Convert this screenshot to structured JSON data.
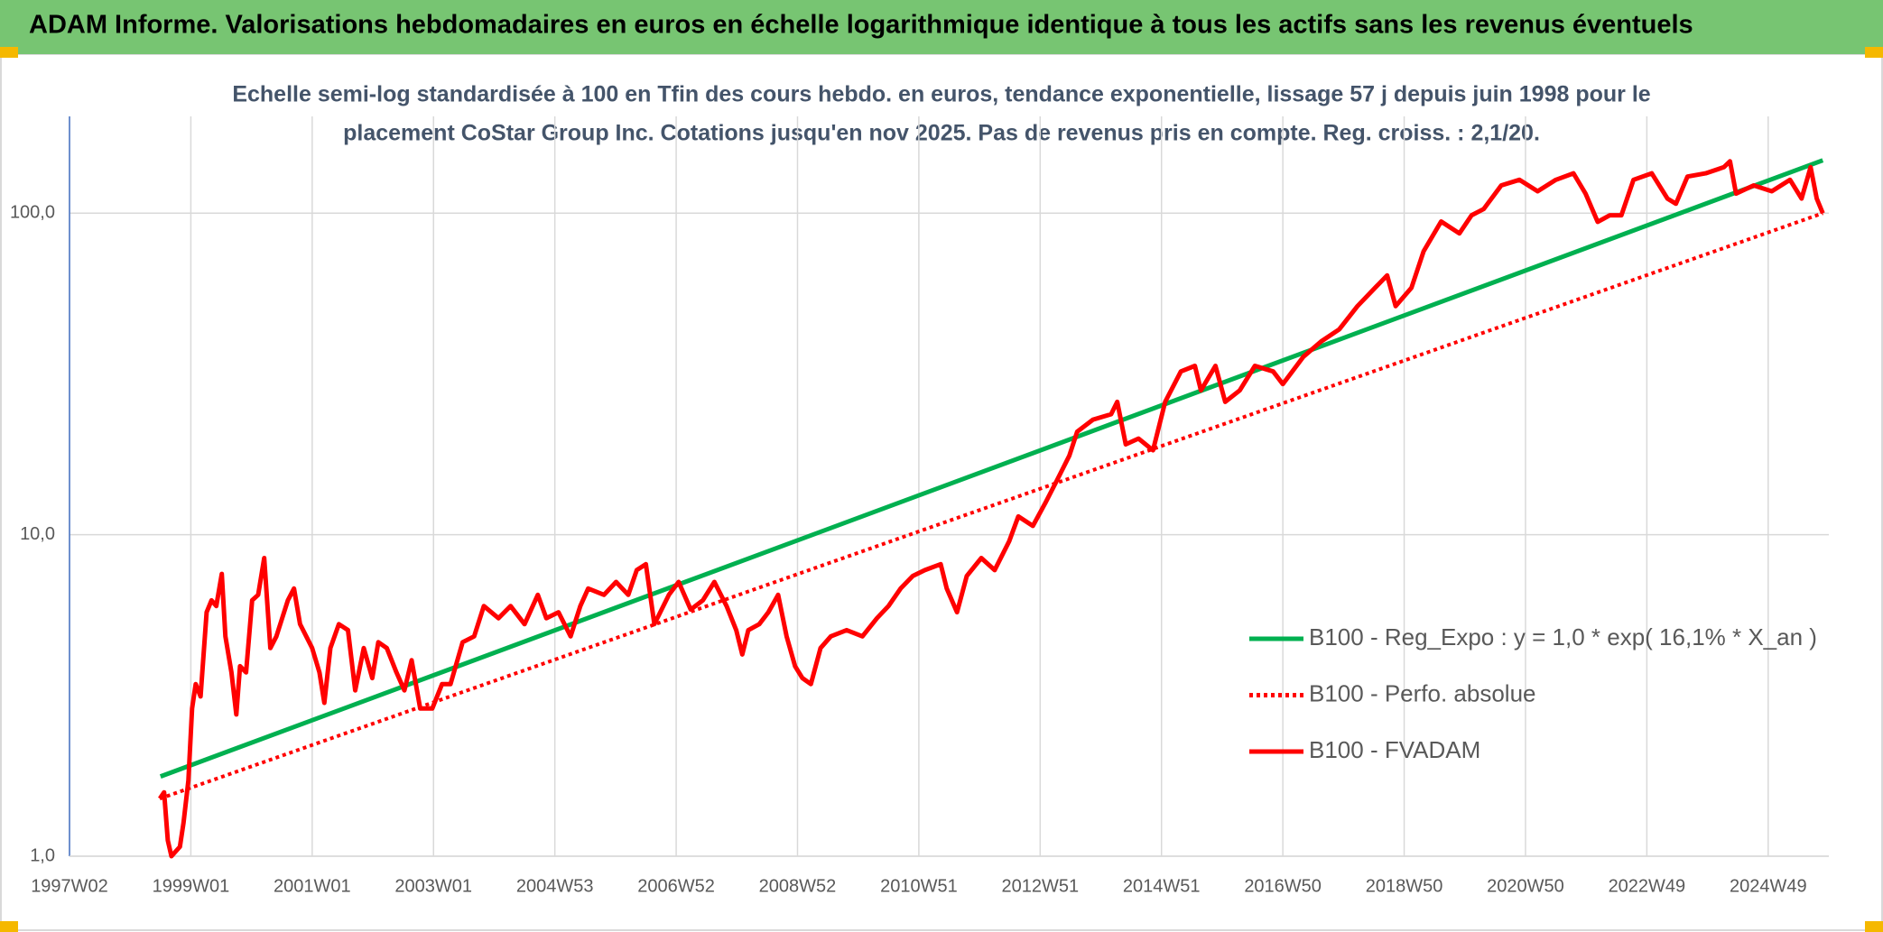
{
  "chart_data": {
    "type": "line",
    "title": "ADAM Informe. Valorisations hebdomadaires en euros en échelle logarithmique identique à tous les actifs sans les revenus éventuels",
    "subtitle": [
      "Echelle semi-log standardisée à 100 en Tfin des cours hebdo. en euros, tendance exponentielle, lissage 57 j depuis juin 1998 pour le",
      "placement CoStar Group Inc. Cotations jusqu'en nov 2025. Pas de revenus pris en compte. Reg. croiss. : 2,1/20."
    ],
    "log_scale": true,
    "grid": true,
    "legend": "right",
    "xlim": [
      1997,
      2026
    ],
    "xticks": [
      {
        "value": 1997,
        "label": "1997W02"
      },
      {
        "value": 1999,
        "label": "1999W01"
      },
      {
        "value": 2001,
        "label": "2001W01"
      },
      {
        "value": 2003,
        "label": "2003W01"
      },
      {
        "value": 2005,
        "label": "2004W53"
      },
      {
        "value": 2007,
        "label": "2006W52"
      },
      {
        "value": 2009,
        "label": "2008W52"
      },
      {
        "value": 2011,
        "label": "2010W51"
      },
      {
        "value": 2013,
        "label": "2012W51"
      },
      {
        "value": 2015,
        "label": "2014W51"
      },
      {
        "value": 2017,
        "label": "2016W50"
      },
      {
        "value": 2019,
        "label": "2018W50"
      },
      {
        "value": 2021,
        "label": "2020W50"
      },
      {
        "value": 2023,
        "label": "2022W49"
      },
      {
        "value": 2025,
        "label": "2024W49"
      }
    ],
    "ylim": [
      1,
      200
    ],
    "yticks": [
      {
        "value": 1,
        "label": "1,0"
      },
      {
        "value": 10,
        "label": "10,0"
      },
      {
        "value": 100,
        "label": "100,0"
      }
    ],
    "series": [
      {
        "name": "B100 - Reg_Expo : y = 1,0 * exp( 16,1% *  X_an )",
        "color": "#00b050",
        "style": "solid",
        "x": [
          1998.5,
          2025.9
        ],
        "values": [
          1.77,
          146
        ]
      },
      {
        "name": "B100 - Perfo. absolue",
        "color": "#ff0000",
        "style": "dotted",
        "x": [
          1998.49,
          2025.9
        ],
        "values": [
          1.51,
          100
        ]
      },
      {
        "name": "B100 - FVADAM",
        "color": "#ff0000",
        "style": "solid",
        "x": [
          1998.49,
          1998.56,
          1998.62,
          1998.68,
          1998.82,
          1998.88,
          1998.96,
          1999.02,
          1999.08,
          1999.16,
          1999.26,
          1999.34,
          1999.42,
          1999.51,
          1999.57,
          1999.67,
          1999.75,
          1999.81,
          1999.91,
          2000.01,
          2000.11,
          2000.21,
          2000.31,
          2000.41,
          2000.6,
          2000.7,
          2000.8,
          2001.0,
          2001.12,
          2001.2,
          2001.3,
          2001.44,
          2001.59,
          2001.71,
          2001.85,
          2001.99,
          2002.09,
          2002.23,
          2002.39,
          2002.52,
          2002.64,
          2002.78,
          2002.98,
          2003.14,
          2003.28,
          2003.48,
          2003.67,
          2003.83,
          2004.07,
          2004.27,
          2004.5,
          2004.72,
          2004.86,
          2005.06,
          2005.26,
          2005.42,
          2005.55,
          2005.81,
          2006.01,
          2006.21,
          2006.35,
          2006.5,
          2006.64,
          2006.88,
          2007.04,
          2007.24,
          2007.44,
          2007.63,
          2007.83,
          2007.99,
          2008.09,
          2008.19,
          2008.37,
          2008.52,
          2008.68,
          2008.82,
          2008.96,
          2009.08,
          2009.22,
          2009.38,
          2009.55,
          2009.81,
          2010.07,
          2010.31,
          2010.5,
          2010.7,
          2010.9,
          2011.1,
          2011.36,
          2011.46,
          2011.63,
          2011.79,
          2012.03,
          2012.25,
          2012.49,
          2012.64,
          2012.88,
          2013.08,
          2013.28,
          2013.48,
          2013.61,
          2013.87,
          2014.17,
          2014.27,
          2014.41,
          2014.62,
          2014.86,
          2015.06,
          2015.32,
          2015.55,
          2015.65,
          2015.89,
          2016.05,
          2016.29,
          2016.54,
          2016.84,
          2017.0,
          2017.34,
          2017.63,
          2017.93,
          2018.23,
          2018.52,
          2018.72,
          2018.86,
          2019.12,
          2019.32,
          2019.61,
          2019.91,
          2020.11,
          2020.31,
          2020.6,
          2020.9,
          2021.2,
          2021.5,
          2021.79,
          2021.99,
          2022.19,
          2022.39,
          2022.58,
          2022.78,
          2023.08,
          2023.34,
          2023.48,
          2023.67,
          2023.97,
          2024.27,
          2024.37,
          2024.47,
          2024.76,
          2025.06,
          2025.36,
          2025.55,
          2025.7,
          2025.8,
          2025.9
        ],
        "values": [
          1.51,
          1.58,
          1.12,
          1.0,
          1.07,
          1.27,
          1.72,
          2.88,
          3.43,
          3.14,
          5.74,
          6.25,
          6.0,
          7.55,
          4.83,
          3.73,
          2.76,
          3.9,
          3.73,
          6.25,
          6.5,
          8.46,
          4.44,
          4.83,
          6.25,
          6.8,
          5.27,
          4.44,
          3.73,
          3.0,
          4.44,
          5.27,
          5.05,
          3.28,
          4.44,
          3.58,
          4.63,
          4.44,
          3.73,
          3.28,
          4.07,
          2.88,
          2.88,
          3.43,
          3.43,
          4.63,
          4.83,
          6.0,
          5.5,
          6.0,
          5.27,
          6.5,
          5.5,
          5.74,
          4.83,
          6.0,
          6.8,
          6.5,
          7.13,
          6.5,
          7.76,
          8.1,
          5.27,
          6.5,
          7.13,
          5.85,
          6.25,
          7.13,
          6.0,
          5.05,
          4.24,
          5.05,
          5.27,
          5.74,
          6.5,
          4.83,
          3.9,
          3.58,
          3.43,
          4.44,
          4.83,
          5.05,
          4.83,
          5.5,
          6.0,
          6.8,
          7.44,
          7.76,
          8.1,
          6.8,
          5.74,
          7.44,
          8.46,
          7.76,
          9.54,
          11.4,
          10.65,
          12.5,
          14.8,
          17.6,
          20.9,
          22.8,
          23.7,
          25.9,
          19.1,
          19.9,
          18.3,
          25.9,
          32.2,
          33.5,
          28.1,
          33.5,
          25.9,
          28.1,
          33.5,
          32.2,
          29.4,
          35.8,
          39.9,
          43.5,
          51.4,
          58.6,
          64.0,
          51.4,
          58.6,
          76.1,
          94.2,
          86.5,
          98.5,
          103,
          122,
          127,
          117,
          127,
          133,
          115,
          94,
          98.5,
          98.5,
          127,
          133,
          111,
          107,
          130,
          133,
          139,
          145,
          115,
          122,
          117,
          127,
          111,
          139,
          111,
          100
        ]
      }
    ]
  }
}
